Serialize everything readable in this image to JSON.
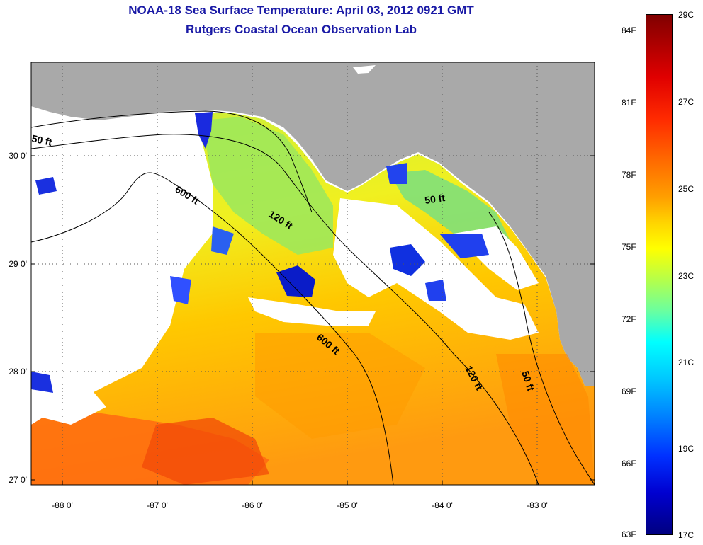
{
  "title": {
    "line1": "NOAA-18 Sea Surface Temperature:  April 03, 2012 0921 GMT",
    "line2": "Rutgers Coastal Ocean Observation Lab"
  },
  "map": {
    "lat_labels": [
      "30 0'",
      "29 0'",
      "28 0'",
      "27 0'"
    ],
    "lon_labels": [
      "-88 0'",
      "-87 0'",
      "-86 0'",
      "-85 0'",
      "-84 0'",
      "-83 0'"
    ],
    "contour_labels": [
      "50 ft",
      "600 ft",
      "120 ft",
      "50 ft",
      "600 ft",
      "120 ft",
      "50 ft"
    ]
  },
  "colorbar": {
    "fahrenheit_labels": [
      "84F",
      "81F",
      "78F",
      "75F",
      "72F",
      "69F",
      "66F",
      "63F"
    ],
    "celsius_labels": [
      "29C",
      "27C",
      "25C",
      "23C",
      "21C",
      "19C",
      "17C"
    ]
  },
  "colors": {
    "land": "#a9a9a9",
    "title": "#1a1aa6"
  }
}
